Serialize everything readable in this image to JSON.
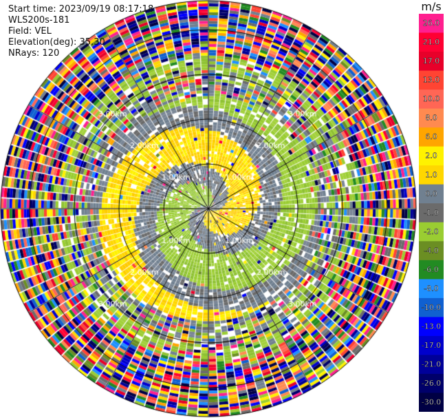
{
  "header": {
    "start_time": "Start time: 2023/09/19 08:17:18",
    "instrument": "WLS200s-181",
    "field": "Field: VEL",
    "elevation": "Elevation(deg): 35.30",
    "nrays": "NRays: 120"
  },
  "colorbar": {
    "unit": "m/s",
    "entries": [
      {
        "label": "26.0",
        "color": "#ff1f8f"
      },
      {
        "label": "21.0",
        "color": "#ff0033"
      },
      {
        "label": "17.0",
        "color": "#e8002a"
      },
      {
        "label": "13.0",
        "color": "#ff4433"
      },
      {
        "label": "10.0",
        "color": "#ff6655"
      },
      {
        "label": "8.0",
        "color": "#ff8a50"
      },
      {
        "label": "6.0",
        "color": "#ffa500"
      },
      {
        "label": "2.0",
        "color": "#fff200"
      },
      {
        "label": "1.0",
        "color": "#ffd700"
      },
      {
        "label": "0.0",
        "color": "#708090"
      },
      {
        "label": "-1.0",
        "color": "#6b6b6b"
      },
      {
        "label": "-2.0",
        "color": "#9acd32"
      },
      {
        "label": "-4.0",
        "color": "#6b8e23"
      },
      {
        "label": "-6.0",
        "color": "#228b22"
      },
      {
        "label": "-8.0",
        "color": "#1e90ff"
      },
      {
        "label": "-10.0",
        "color": "#1060d0"
      },
      {
        "label": "-13.0",
        "color": "#0000ff"
      },
      {
        "label": "-17.0",
        "color": "#0000cc"
      },
      {
        "label": "-21.0",
        "color": "#000099"
      },
      {
        "label": "-26.0",
        "color": "#00006a"
      },
      {
        "label": "-30.0",
        "color": "#000044"
      }
    ]
  },
  "range_labels": {
    "r1": "1.00km",
    "r2": "2.00km",
    "r3": "3.00km"
  }
}
